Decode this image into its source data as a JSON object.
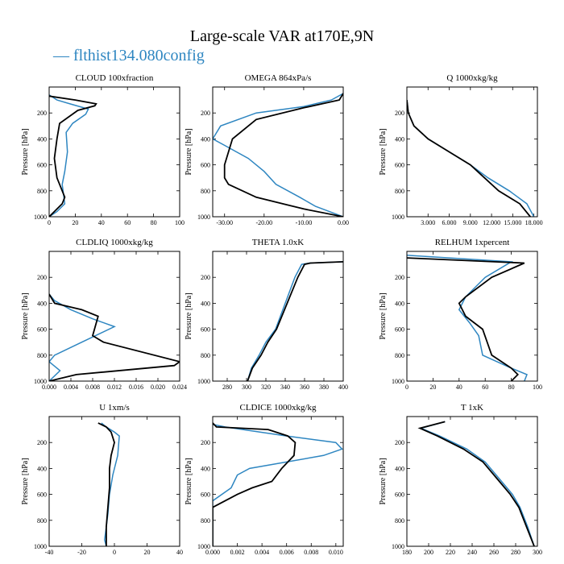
{
  "title": "Large-scale VAR at170E,9N",
  "legend": {
    "dash": "—",
    "label": "flthist134.080config"
  },
  "colors": {
    "model": "#2e86c1",
    "obs": "#000000"
  },
  "ylabel": "Pressure [hPa]",
  "chart_data": [
    {
      "type": "line",
      "title": "CLOUD  100xfraction",
      "xlim": [
        0,
        100
      ],
      "ylim": [
        1000,
        0
      ],
      "xticks": [
        "0",
        "20",
        "40",
        "60",
        "80",
        "100"
      ],
      "yticks": [
        "200",
        "400",
        "600",
        "800",
        "1000"
      ],
      "series": [
        {
          "name": "flthist134.080config",
          "x": [
            0,
            6,
            16,
            30,
            28,
            18,
            13,
            14,
            12,
            10,
            12,
            6,
            0
          ],
          "y": [
            60,
            100,
            130,
            170,
            210,
            280,
            350,
            500,
            650,
            750,
            900,
            960,
            1000
          ]
        },
        {
          "name": "",
          "x": [
            0,
            20,
            36,
            35,
            22,
            8,
            6,
            4,
            6,
            12,
            10,
            0
          ],
          "y": [
            70,
            100,
            130,
            145,
            180,
            280,
            400,
            550,
            700,
            850,
            900,
            1000
          ]
        }
      ]
    },
    {
      "type": "line",
      "title": "OMEGA  864xPa/s",
      "xlim": [
        -33,
        0
      ],
      "ylim": [
        1000,
        0
      ],
      "xticks": [
        "-30.00",
        "-20.00",
        "-10.00",
        "0.00"
      ],
      "yticks": [
        "200",
        "400",
        "600",
        "800",
        "1000"
      ],
      "series": [
        {
          "name": "flthist134.080config",
          "x": [
            0,
            -3,
            -10,
            -22,
            -31,
            -33,
            -30,
            -24,
            -20,
            -17,
            -11,
            -7,
            0
          ],
          "y": [
            50,
            100,
            150,
            200,
            300,
            400,
            450,
            550,
            650,
            750,
            850,
            920,
            1000
          ]
        },
        {
          "name": "",
          "x": [
            0,
            -1,
            -10,
            -22,
            -28,
            -30,
            -30,
            -29,
            -22,
            -10,
            0
          ],
          "y": [
            50,
            100,
            160,
            250,
            400,
            600,
            700,
            750,
            850,
            940,
            1000
          ]
        }
      ]
    },
    {
      "type": "line",
      "title": "Q  1000xkg/kg",
      "xlim": [
        0,
        18.5
      ],
      "ylim": [
        1000,
        0
      ],
      "xticks": [
        "3.000",
        "6.000",
        "9.000",
        "12.000",
        "15.000",
        "18.000"
      ],
      "yticks": [
        "200",
        "400",
        "600",
        "800",
        "1000"
      ],
      "series": [
        {
          "name": "flthist134.080config",
          "x": [
            0,
            0.2,
            1.0,
            3.0,
            6.0,
            9.0,
            11.5,
            14.5,
            17.0,
            18.0
          ],
          "y": [
            100,
            200,
            300,
            400,
            500,
            600,
            700,
            800,
            900,
            1000
          ]
        },
        {
          "name": "",
          "x": [
            0,
            0.2,
            1.0,
            3.0,
            6.0,
            9.0,
            11.0,
            13.0,
            16.0,
            17.5
          ],
          "y": [
            100,
            200,
            300,
            400,
            500,
            600,
            700,
            800,
            900,
            1000
          ]
        }
      ]
    },
    {
      "type": "line",
      "title": "CLDLIQ  1000xkg/kg",
      "xlim": [
        0,
        0.024
      ],
      "ylim": [
        1000,
        0
      ],
      "xticks": [
        "0.000",
        "0.004",
        "0.008",
        "0.012",
        "0.016",
        "0.020",
        "0.024"
      ],
      "yticks": [
        "200",
        "400",
        "600",
        "800",
        "1000"
      ],
      "series": [
        {
          "name": "flthist134.080config",
          "x": [
            0,
            0.001,
            0.004,
            0.008,
            0.012,
            0.006,
            0.001,
            0,
            0.002,
            0
          ],
          "y": [
            330,
            380,
            450,
            520,
            580,
            700,
            800,
            850,
            920,
            1000
          ]
        },
        {
          "name": "",
          "x": [
            0,
            0.001,
            0.006,
            0.009,
            0.008,
            0.01,
            0.024,
            0.023,
            0.005,
            0
          ],
          "y": [
            330,
            400,
            450,
            500,
            650,
            700,
            850,
            880,
            950,
            1000
          ]
        }
      ]
    },
    {
      "type": "line",
      "title": "THETA  1.0xK",
      "xlim": [
        265,
        400
      ],
      "ylim": [
        1000,
        0
      ],
      "xticks": [
        "280",
        "300",
        "320",
        "340",
        "360",
        "380",
        "400"
      ],
      "yticks": [
        "200",
        "400",
        "600",
        "800",
        "1000"
      ],
      "series": [
        {
          "name": "flthist134.080config",
          "x": [
            400,
            365,
            357,
            350,
            340,
            330,
            320,
            313,
            305,
            301
          ],
          "y": [
            80,
            90,
            100,
            200,
            400,
            600,
            700,
            800,
            900,
            1000
          ]
        },
        {
          "name": "",
          "x": [
            400,
            366,
            360,
            353,
            342,
            331,
            322,
            315,
            306,
            301
          ],
          "y": [
            80,
            90,
            100,
            200,
            400,
            600,
            700,
            800,
            900,
            1000
          ]
        }
      ]
    },
    {
      "type": "line",
      "title": "RELHUM  1xpercent",
      "xlim": [
        0,
        100
      ],
      "ylim": [
        1000,
        0
      ],
      "xticks": [
        "0",
        "20",
        "40",
        "60",
        "80",
        "100"
      ],
      "yticks": [
        "200",
        "400",
        "600",
        "800",
        "1000"
      ],
      "series": [
        {
          "name": "flthist134.080config",
          "x": [
            0,
            80,
            60,
            45,
            40,
            48,
            55,
            58,
            80,
            92,
            90
          ],
          "y": [
            30,
            80,
            200,
            350,
            450,
            550,
            650,
            800,
            900,
            950,
            1000
          ]
        },
        {
          "name": "",
          "x": [
            0,
            90,
            65,
            45,
            40,
            45,
            58,
            65,
            80,
            85,
            80
          ],
          "y": [
            50,
            90,
            200,
            350,
            400,
            500,
            600,
            800,
            900,
            950,
            1000
          ]
        }
      ]
    },
    {
      "type": "line",
      "title": "U  1xm/s",
      "xlim": [
        -40,
        40
      ],
      "ylim": [
        1000,
        0
      ],
      "xticks": [
        "-40",
        "-20",
        "0",
        "20",
        "40"
      ],
      "yticks": [
        "200",
        "400",
        "600",
        "800",
        "1000"
      ],
      "series": [
        {
          "name": "flthist134.080config",
          "x": [
            -8,
            -5,
            0,
            3,
            2,
            -1,
            -3,
            -4,
            -5,
            -6,
            -5
          ],
          "y": [
            50,
            80,
            120,
            150,
            300,
            450,
            600,
            750,
            850,
            950,
            1000
          ]
        },
        {
          "name": "",
          "x": [
            -10,
            -5,
            -2,
            0,
            -2,
            -3,
            -3,
            -4,
            -5,
            -5,
            -5
          ],
          "y": [
            50,
            80,
            120,
            200,
            300,
            400,
            550,
            700,
            850,
            950,
            1000
          ]
        }
      ]
    },
    {
      "type": "line",
      "title": "CLDICE  1000xkg/kg",
      "xlim": [
        0,
        0.0106
      ],
      "ylim": [
        1000,
        0
      ],
      "xticks": [
        "0.000",
        "0.002",
        "0.004",
        "0.006",
        "0.008",
        "0.010"
      ],
      "yticks": [
        "200",
        "400",
        "600",
        "800",
        "1000"
      ],
      "series": [
        {
          "name": "flthist134.080config",
          "x": [
            0,
            0.001,
            0.006,
            0.01,
            0.0105,
            0.009,
            0.003,
            0.002,
            0.0015,
            0,
            0
          ],
          "y": [
            60,
            80,
            150,
            200,
            250,
            300,
            400,
            450,
            550,
            650,
            1000
          ]
        },
        {
          "name": "",
          "x": [
            0,
            0.0003,
            0.0045,
            0.0061,
            0.0067,
            0.0066,
            0.0056,
            0.0048,
            0.0032,
            0.002,
            0,
            0
          ],
          "y": [
            50,
            80,
            100,
            150,
            200,
            300,
            400,
            500,
            550,
            600,
            700,
            1000
          ]
        }
      ]
    },
    {
      "type": "line",
      "title": "T  1xK",
      "xlim": [
        180,
        300
      ],
      "ylim": [
        1000,
        0
      ],
      "xticks": [
        "180",
        "200",
        "220",
        "240",
        "260",
        "280",
        "300"
      ],
      "yticks": [
        "200",
        "400",
        "600",
        "800",
        "1000"
      ],
      "series": [
        {
          "name": "flthist134.080config",
          "x": [
            215,
            193,
            210,
            235,
            252,
            267,
            277,
            284,
            291,
            297
          ],
          "y": [
            40,
            90,
            150,
            250,
            350,
            500,
            600,
            700,
            850,
            1000
          ]
        },
        {
          "name": "",
          "x": [
            215,
            192,
            208,
            232,
            250,
            265,
            275,
            283,
            290,
            297
          ],
          "y": [
            40,
            90,
            150,
            250,
            350,
            500,
            600,
            700,
            850,
            1000
          ]
        }
      ]
    }
  ]
}
